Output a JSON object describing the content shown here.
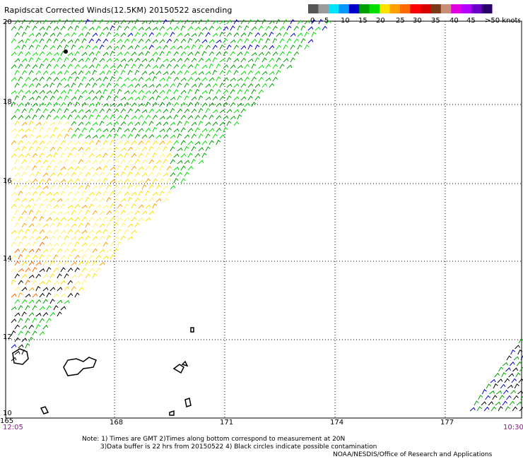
{
  "title": "Rapidscat Corrected Winds(12.5KM) 20150522 ascending",
  "colorbar": {
    "swatches": [
      "#555555",
      "#9b9b9b",
      "#00e5ff",
      "#0099ff",
      "#0000c8",
      "#00a000",
      "#00e000",
      "#ffe100",
      "#ffa000",
      "#ff6a00",
      "#ff0000",
      "#d80000",
      "#7a3a1a",
      "#c89078",
      "#e000e0",
      "#b400ff",
      "#6a00c8",
      "#2a006a"
    ],
    "tick_labels": [
      "0",
      "5",
      "10",
      "15",
      "20",
      "25",
      "30",
      "35",
      "40",
      "45",
      ">50 knots"
    ]
  },
  "axes": {
    "lat_labels": [
      "20",
      "18",
      "16",
      "14",
      "12",
      "10"
    ],
    "lon_labels": [
      "165",
      "168",
      "171",
      "174",
      "177"
    ]
  },
  "times": {
    "left": "12:05",
    "right": "10:30"
  },
  "notes": [
    "Note: 1) Times are GMT 2)Times along bottom correspond to measurement at 20N",
    "3)Data buffer is 22 hrs from 20150522 4) Black circles indicate possible contamination",
    "NOAA/NESDIS/Office of Research and Applications"
  ]
}
